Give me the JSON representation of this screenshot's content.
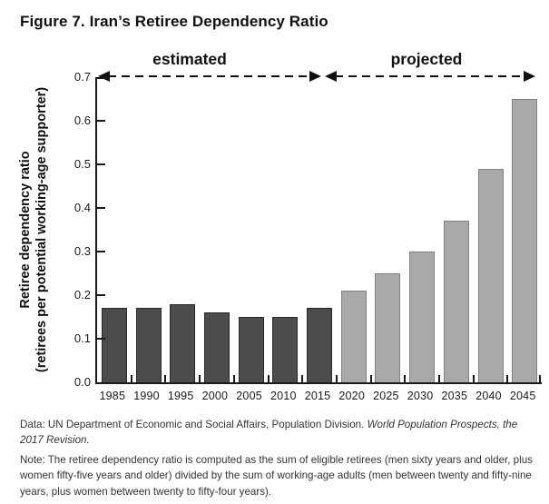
{
  "title": "Figure 7. Iran’s Retiree Dependency Ratio",
  "chart_data": {
    "type": "bar",
    "title": "Figure 7. Iran’s Retiree Dependency Ratio",
    "categories": [
      "1985",
      "1990",
      "1995",
      "2000",
      "2005",
      "2010",
      "2015",
      "2020",
      "2025",
      "2030",
      "2035",
      "2040",
      "2045"
    ],
    "series": [
      {
        "name": "estimated",
        "color": "#4c4c4e",
        "border_color": "#29292b",
        "values": [
          0.17,
          0.17,
          0.18,
          0.16,
          0.15,
          0.15,
          0.17,
          null,
          null,
          null,
          null,
          null,
          null
        ]
      },
      {
        "name": "projected",
        "color": "#a9a9ab",
        "border_color": "#818184",
        "values": [
          null,
          null,
          null,
          null,
          null,
          null,
          null,
          0.21,
          0.25,
          0.3,
          0.37,
          0.49,
          0.65
        ]
      }
    ],
    "ylabel_line1": "Retiree dependency ratio",
    "ylabel_line2": "(retirees per potential working-age supporter)",
    "xlabel": "",
    "ylim": [
      0,
      0.7
    ],
    "yticks": [
      "0.0",
      "0.1",
      "0.2",
      "0.3",
      "0.4",
      "0.5",
      "0.6",
      "0.7"
    ],
    "grid": false,
    "legend": "none",
    "annotations": [
      {
        "label": "estimated",
        "applies_to": "estimated"
      },
      {
        "label": "projected",
        "applies_to": "projected"
      }
    ]
  },
  "notes": {
    "source_prefix": "Data: UN Department of Economic and Social Affairs, Population Division. ",
    "source_italic": "World Population Prospects, the 2017 Revision.",
    "definition": "Note: The retiree dependency ratio is computed as the sum of eligible retirees (men sixty years and older, plus women fifty-five years and older) divided by the sum of working-age adults (men between twenty and fifty-nine years, plus women between twenty to fifty-four years)."
  }
}
